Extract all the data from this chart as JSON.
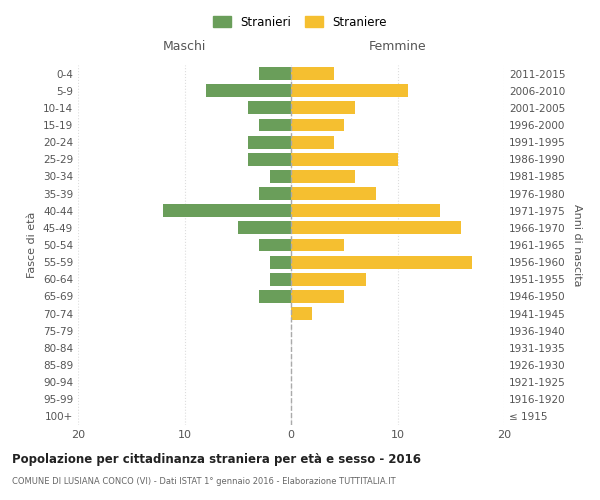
{
  "age_groups": [
    "0-4",
    "5-9",
    "10-14",
    "15-19",
    "20-24",
    "25-29",
    "30-34",
    "35-39",
    "40-44",
    "45-49",
    "50-54",
    "55-59",
    "60-64",
    "65-69",
    "70-74",
    "75-79",
    "80-84",
    "85-89",
    "90-94",
    "95-99",
    "100+"
  ],
  "birth_years": [
    "2011-2015",
    "2006-2010",
    "2001-2005",
    "1996-2000",
    "1991-1995",
    "1986-1990",
    "1981-1985",
    "1976-1980",
    "1971-1975",
    "1966-1970",
    "1961-1965",
    "1956-1960",
    "1951-1955",
    "1946-1950",
    "1941-1945",
    "1936-1940",
    "1931-1935",
    "1926-1930",
    "1921-1925",
    "1916-1920",
    "≤ 1915"
  ],
  "stranieri": [
    3,
    8,
    4,
    3,
    4,
    4,
    2,
    3,
    12,
    5,
    3,
    2,
    2,
    3,
    0,
    0,
    0,
    0,
    0,
    0,
    0
  ],
  "straniere": [
    4,
    11,
    6,
    5,
    4,
    10,
    6,
    8,
    14,
    16,
    5,
    17,
    7,
    5,
    2,
    0,
    0,
    0,
    0,
    0,
    0
  ],
  "color_stranieri": "#6a9e5a",
  "color_straniere": "#f5bf30",
  "xlim": 20,
  "xlabel_left": "Maschi",
  "xlabel_right": "Femmine",
  "ylabel_left": "Fasce di età",
  "ylabel_right": "Anni di nascita",
  "title": "Popolazione per cittadinanza straniera per età e sesso - 2016",
  "subtitle": "COMUNE DI LUSIANA CONCO (VI) - Dati ISTAT 1° gennaio 2016 - Elaborazione TUTTITALIA.IT",
  "legend_stranieri": "Stranieri",
  "legend_straniere": "Straniere",
  "bg_color": "#ffffff",
  "grid_color": "#dddddd",
  "center_line_color": "#aaaaaa"
}
